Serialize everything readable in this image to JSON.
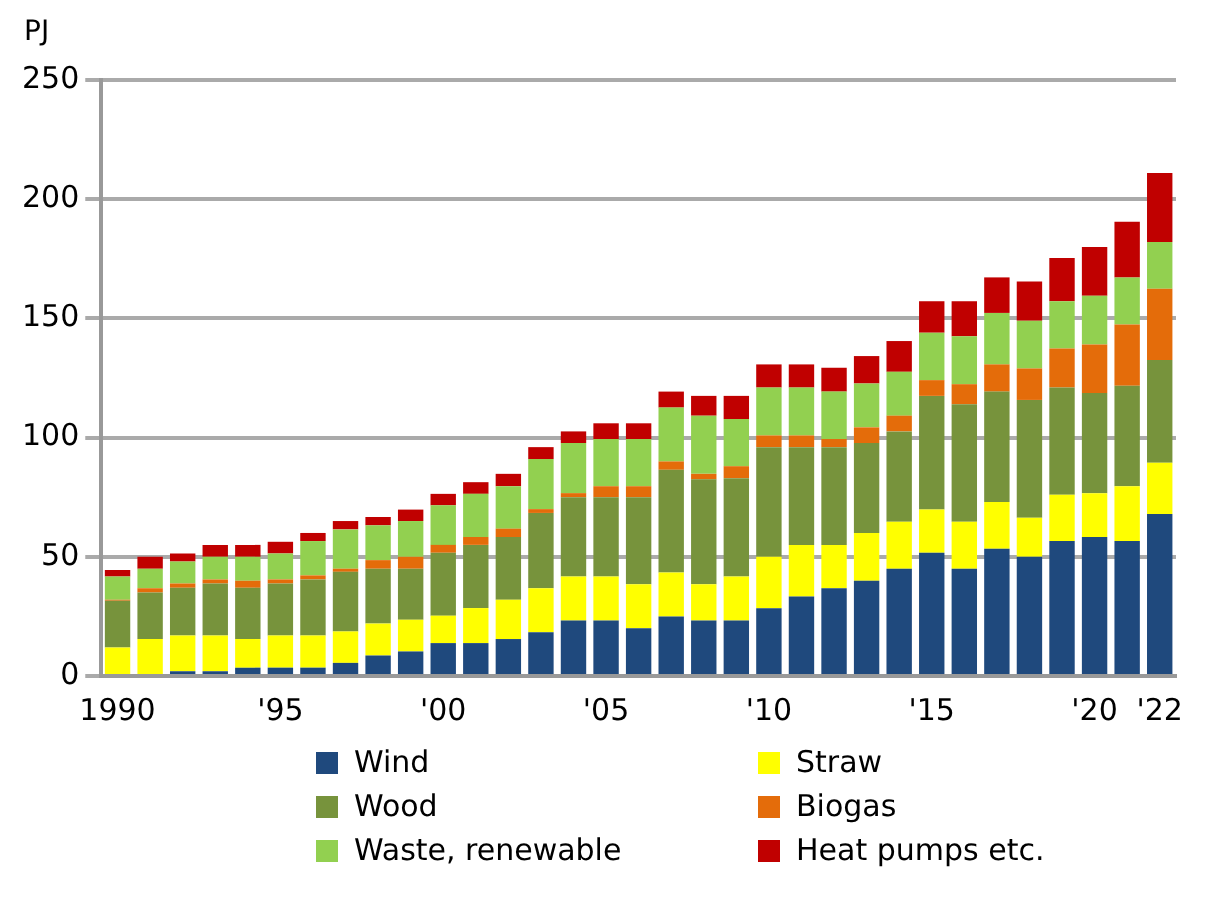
{
  "chart_data": {
    "type": "bar",
    "stacked": true,
    "ylabel": "PJ",
    "categories": [
      "1990",
      null,
      null,
      null,
      null,
      "'95",
      null,
      null,
      null,
      null,
      "'00",
      null,
      null,
      null,
      null,
      "'05",
      null,
      null,
      null,
      null,
      "'10",
      null,
      null,
      null,
      null,
      "'15",
      null,
      null,
      null,
      null,
      "'20",
      null,
      "'22"
    ],
    "series": [
      {
        "name": "Wind",
        "color": "#1f497d",
        "values": [
          0,
          0,
          2,
          2,
          3.5,
          3.5,
          3.5,
          5.5,
          8.6,
          10.3,
          13.8,
          13.8,
          15.5,
          18.4,
          23.3,
          23.3,
          20,
          25,
          23.3,
          23.3,
          28.4,
          33.3,
          36.8,
          40,
          45,
          51.7,
          45,
          53.4,
          50,
          56.6,
          58.3,
          56.6,
          68
        ]
      },
      {
        "name": "Straw",
        "color": "#ffff00",
        "values": [
          12,
          15.5,
          15,
          15,
          12,
          13.5,
          13.5,
          13.2,
          13.4,
          13.3,
          11.5,
          14.7,
          16.5,
          18.4,
          18.4,
          18.4,
          18.5,
          18.4,
          15.2,
          18.4,
          21.6,
          21.7,
          18.2,
          20,
          19.7,
          18.1,
          19.7,
          19.6,
          16.4,
          19.4,
          18.4,
          23,
          21.4
        ]
      },
      {
        "name": "Wood",
        "color": "#77933c",
        "values": [
          19.6,
          19.5,
          20,
          21.8,
          21.5,
          21.8,
          23.5,
          25,
          23,
          21.4,
          26.4,
          26.5,
          26.3,
          31.6,
          33.3,
          33.3,
          36.5,
          43.1,
          44,
          41.3,
          46,
          41,
          41,
          37.7,
          37.9,
          47.7,
          49.3,
          46.3,
          49.4,
          45,
          42,
          42.2,
          43.1
        ]
      },
      {
        "name": "Biogas",
        "color": "#e46c0a",
        "values": [
          0.4,
          1.8,
          1.8,
          1.7,
          3,
          1.7,
          1.7,
          1.3,
          3.6,
          5,
          3.3,
          3.3,
          3.5,
          1.6,
          1.7,
          4.6,
          4.6,
          3.5,
          2.3,
          5,
          4.9,
          4.9,
          3.4,
          6.6,
          6.6,
          6.6,
          8.4,
          11.4,
          13.2,
          16.4,
          20.3,
          25.6,
          29.9
        ]
      },
      {
        "name": "Waste, renewable",
        "color": "#92d050",
        "values": [
          9.7,
          8.2,
          9.2,
          9.5,
          10,
          10.9,
          14.4,
          16.5,
          14.6,
          15,
          16.6,
          18.1,
          17.8,
          21,
          21,
          19.8,
          19.8,
          22.6,
          24.4,
          19.8,
          20.1,
          20.1,
          19.9,
          18.4,
          18.4,
          19.9,
          20.1,
          21.6,
          20,
          19.8,
          20.5,
          19.8,
          19.6
        ]
      },
      {
        "name": "Heat pumps etc.",
        "color": "#c00000",
        "values": [
          2.8,
          5,
          3.4,
          5,
          5,
          4.9,
          3.4,
          3.5,
          3.5,
          4.8,
          4.8,
          4.9,
          5.2,
          5,
          4.9,
          6.6,
          6.6,
          6.7,
          8.3,
          9.7,
          9.7,
          9.7,
          10,
          11.5,
          12.9,
          13.2,
          14.7,
          14.9,
          16.5,
          18.1,
          20.5,
          23.3,
          29
        ]
      }
    ],
    "ylim": [
      0,
      250
    ],
    "yticks": [
      0,
      50,
      100,
      150,
      200,
      250
    ],
    "grid": "y",
    "legend": "bottom"
  }
}
